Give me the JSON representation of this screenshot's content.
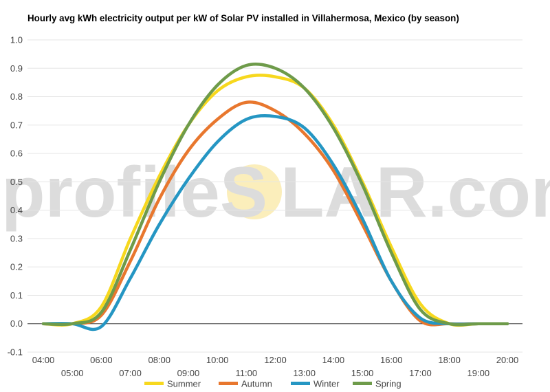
{
  "watermark": {
    "text_left": "profileS",
    "text_right": "LAR.com",
    "sun_color": "#fbeebb"
  },
  "chart_data": {
    "type": "line",
    "title": "Hourly avg kWh electricity output per kW of Solar PV installed in Villahermosa, Mexico (by season)",
    "xlabel": "",
    "ylabel": "",
    "x": [
      "04:00",
      "05:00",
      "06:00",
      "07:00",
      "08:00",
      "09:00",
      "10:00",
      "11:00",
      "12:00",
      "13:00",
      "14:00",
      "15:00",
      "16:00",
      "17:00",
      "18:00",
      "19:00",
      "20:00"
    ],
    "ylim": [
      -0.1,
      1.0
    ],
    "yticks": [
      "-0.1",
      "0.0",
      "0.1",
      "0.2",
      "0.3",
      "0.4",
      "0.5",
      "0.6",
      "0.7",
      "0.8",
      "0.9",
      "1.0"
    ],
    "grid": true,
    "legend": "bottom",
    "series": [
      {
        "name": "Summer",
        "color": "#f7d81e",
        "values": [
          0.0,
          0.0,
          0.06,
          0.3,
          0.52,
          0.7,
          0.82,
          0.87,
          0.87,
          0.83,
          0.7,
          0.5,
          0.27,
          0.07,
          0.0,
          0.0,
          0.0
        ]
      },
      {
        "name": "Autumn",
        "color": "#e8772e",
        "values": [
          0.0,
          0.0,
          0.03,
          0.22,
          0.44,
          0.61,
          0.72,
          0.78,
          0.75,
          0.67,
          0.54,
          0.35,
          0.15,
          0.01,
          0.0,
          0.0,
          0.0
        ]
      },
      {
        "name": "Winter",
        "color": "#2596c3",
        "values": [
          0.0,
          0.0,
          -0.01,
          0.16,
          0.35,
          0.51,
          0.64,
          0.72,
          0.73,
          0.69,
          0.56,
          0.37,
          0.15,
          0.02,
          0.0,
          0.0,
          0.0
        ]
      },
      {
        "name": "Spring",
        "color": "#6e9b4a",
        "values": [
          0.0,
          0.0,
          0.04,
          0.26,
          0.5,
          0.7,
          0.84,
          0.91,
          0.9,
          0.83,
          0.69,
          0.49,
          0.25,
          0.05,
          0.0,
          0.0,
          0.0
        ]
      }
    ]
  }
}
